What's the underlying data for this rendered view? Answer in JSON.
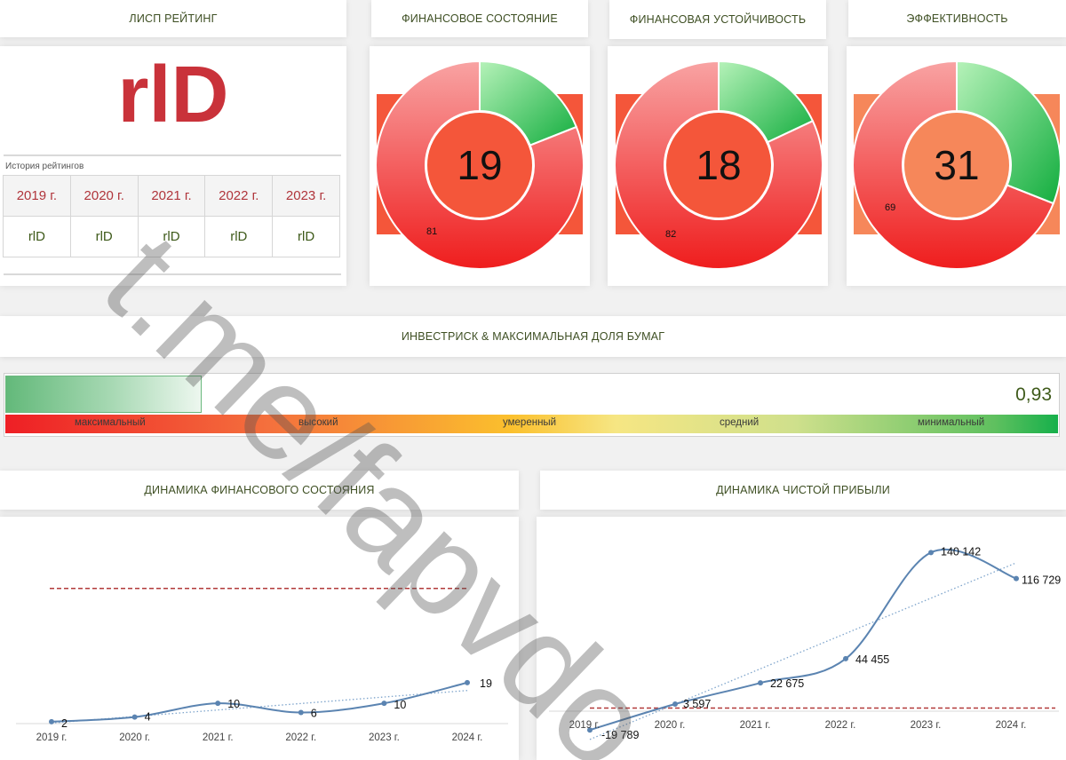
{
  "headers": {
    "lisp": "ЛИСП РЕЙТИНГ",
    "fin_state": "ФИНАНСОВОЕ СОСТОЯНИЕ",
    "fin_stability": "ФИНАНСОВАЯ УСТОЙЧИВОСТЬ",
    "efficiency": "ЭФФЕКТИВНОСТЬ",
    "investrisk": "ИНВЕСТРИСК & МАКСИМАЛЬНАЯ ДОЛЯ БУМАГ",
    "dyn_fin": "ДИНАМИКА ФИНАНСОВОГО СОСТОЯНИЯ",
    "dyn_profit": "ДИНАМИКА ЧИСТОЙ ПРИБЫЛИ"
  },
  "rating": {
    "current": "rlD",
    "history_caption": "История рейтингов",
    "years": [
      "2019 г.",
      "2020 г.",
      "2021 г.",
      "2022 г.",
      "2023 г."
    ],
    "values": [
      "rlD",
      "rlD",
      "rlD",
      "rlD",
      "rlD"
    ]
  },
  "donuts": [
    {
      "score": "19",
      "remainder": "81",
      "green_fraction": 0.19,
      "center_color": "#f4563a",
      "square_color": "#f4563a"
    },
    {
      "score": "18",
      "remainder": "82",
      "green_fraction": 0.18,
      "center_color": "#f4563a",
      "square_color": "#f4563a"
    },
    {
      "score": "31",
      "remainder": "69",
      "green_fraction": 0.31,
      "center_color": "#f6875a",
      "square_color": "#f6875a"
    }
  ],
  "investrisk": {
    "value": "0,93",
    "fill_fraction": 0.185,
    "scale_labels": [
      "максимальный",
      "высокий",
      "умеренный",
      "средний",
      "минимальный"
    ]
  },
  "chart_data": [
    {
      "type": "line",
      "title": "ДИНАМИКА ФИНАНСОВОГО СОСТОЯНИЯ",
      "categories": [
        "2019 г.",
        "2020 г.",
        "2021 г.",
        "2022 г.",
        "2023 г.",
        "2024 г."
      ],
      "values": [
        2,
        4,
        10,
        6,
        10,
        19
      ],
      "labels": [
        "2",
        "4",
        "10",
        "6",
        "10",
        "19"
      ],
      "threshold": 60,
      "trendline": true,
      "ylim": [
        0,
        75
      ]
    },
    {
      "type": "line",
      "title": "ДИНАМИКА ЧИСТОЙ ПРИБЫЛИ",
      "categories": [
        "2019 г.",
        "2020 г.",
        "2021 г.",
        "2022 г.",
        "2023 г.",
        "2024 г."
      ],
      "values": [
        -19789,
        3597,
        22675,
        44455,
        140142,
        116729
      ],
      "labels": [
        "-19 789",
        "3 597",
        "22 675",
        "44 455",
        "140 142",
        "116 729"
      ],
      "threshold": 0,
      "trendline": true,
      "ylim": [
        -30000,
        150000
      ]
    }
  ],
  "watermark": "t.me/fapvdo",
  "colors": {
    "brand_red": "#c9323a",
    "green": "#22b24c",
    "line_blue": "#5b84b1",
    "threshold_red": "#b23a3a"
  }
}
